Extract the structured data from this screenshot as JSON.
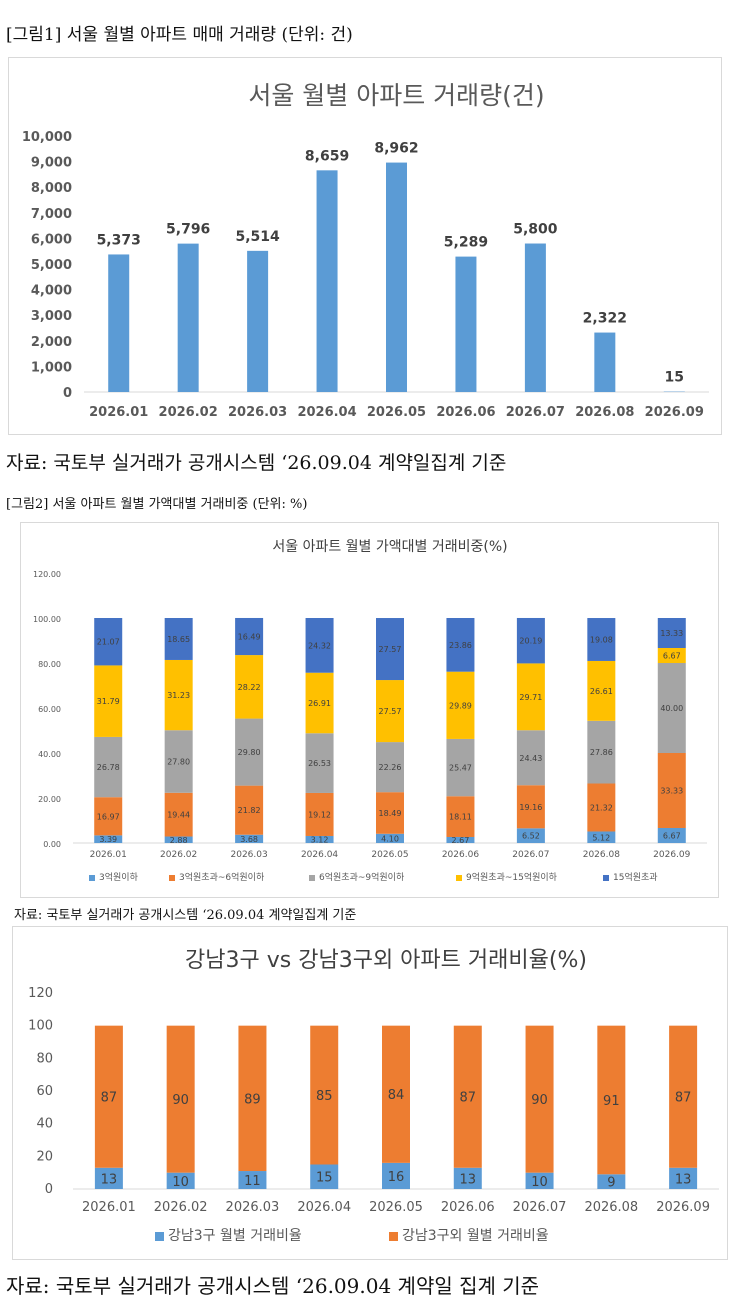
{
  "figure1": {
    "caption": "[그림1] 서울 월별 아파트 매매 거래량 (단위: 건)",
    "source": "자료: 국토부 실거래가 공개시스템 ‘26.09.04 계약일집계 기준"
  },
  "figure2": {
    "caption": "[그림2] 서울 아파트 월별 가액대별 거래비중 (단위: %)",
    "source": "자료: 국토부 실거래가 공개시스템 ‘26.09.04 계약일집계 기준"
  },
  "figure3": {
    "source": "자료: 국토부 실거래가 공개시스템 ‘26.09.04 계약일 집계 기준"
  },
  "colors": {
    "bar_blue": "#5b9bd5",
    "orange": "#ed7d31",
    "gray": "#a5a5a5",
    "yellow": "#ffc000",
    "dark_blue": "#4472c4",
    "light_blue": "#5b9bd5"
  },
  "chart_data": [
    {
      "type": "bar",
      "title": "서울 월별 아파트 거래량(건)",
      "categories": [
        "2026.01",
        "2026.02",
        "2026.03",
        "2026.04",
        "2026.05",
        "2026.06",
        "2026.07",
        "2026.08",
        "2026.09"
      ],
      "values": [
        5373,
        5796,
        5514,
        8659,
        8962,
        5289,
        5800,
        2322,
        15
      ],
      "value_labels": [
        "5,373",
        "5,796",
        "5,514",
        "8,659",
        "8,962",
        "5,289",
        "5,800",
        "2,322",
        "15"
      ],
      "ylim": [
        0,
        10000
      ],
      "yticks": [
        0,
        1000,
        2000,
        3000,
        4000,
        5000,
        6000,
        7000,
        8000,
        9000,
        10000
      ],
      "ytick_labels": [
        "0",
        "1,000",
        "2,000",
        "3,000",
        "4,000",
        "5,000",
        "6,000",
        "7,000",
        "8,000",
        "9,000",
        "10,000"
      ],
      "grid": false,
      "legend": "none"
    },
    {
      "type": "bar",
      "stacked": true,
      "title": "서울 아파트 월별 가액대별 거래비중(%)",
      "categories": [
        "2026.01",
        "2026.02",
        "2026.03",
        "2026.04",
        "2026.05",
        "2026.06",
        "2026.07",
        "2026.08",
        "2026.09"
      ],
      "ylim": [
        0,
        120
      ],
      "yticks": [
        0,
        20,
        40,
        60,
        80,
        100,
        120
      ],
      "ytick_labels": [
        "0.00",
        "20.00",
        "40.00",
        "60.00",
        "80.00",
        "100.00",
        "120.00"
      ],
      "legend": "bottom",
      "series": [
        {
          "name": "3억원이하",
          "values": [
            3.39,
            2.88,
            3.68,
            3.12,
            4.1,
            2.67,
            6.52,
            5.12,
            6.67
          ],
          "labels": [
            "3.39",
            "2.88",
            "3.68",
            "3.12",
            "4.10",
            "2.67",
            "6.52",
            "5.12",
            "6.67"
          ]
        },
        {
          "name": "3억원초과~6억원이하",
          "values": [
            16.97,
            19.44,
            21.82,
            19.12,
            18.49,
            18.11,
            19.16,
            21.32,
            33.33
          ],
          "labels": [
            "16.97",
            "19.44",
            "21.82",
            "19.12",
            "18.49",
            "18.11",
            "19.16",
            "21.32",
            "33.33"
          ]
        },
        {
          "name": "6억원초과~9억원이하",
          "values": [
            26.78,
            27.8,
            29.8,
            26.53,
            22.26,
            25.47,
            24.43,
            27.86,
            40.0
          ],
          "labels": [
            "26.78",
            "27.80",
            "29.80",
            "26.53",
            "22.26",
            "25.47",
            "24.43",
            "27.86",
            "40.00"
          ]
        },
        {
          "name": "9억원초과~15억원이하",
          "values": [
            31.79,
            31.23,
            28.22,
            26.91,
            27.57,
            29.89,
            29.71,
            26.61,
            6.67
          ],
          "labels": [
            "31.79",
            "31.23",
            "28.22",
            "26.91",
            "27.57",
            "29.89",
            "29.71",
            "26.61",
            "6.67"
          ]
        },
        {
          "name": "15억원초과",
          "values": [
            21.07,
            18.65,
            16.49,
            24.32,
            27.57,
            23.86,
            20.19,
            19.08,
            13.33
          ],
          "labels": [
            "21.07",
            "18.65",
            "16.49",
            "24.32",
            "27.57",
            "23.86",
            "20.19",
            "19.08",
            "13.33"
          ]
        }
      ]
    },
    {
      "type": "bar",
      "stacked": true,
      "title": "강남3구 vs 강남3구외 아파트 거래비율(%)",
      "categories": [
        "2026.01",
        "2026.02",
        "2026.03",
        "2026.04",
        "2026.05",
        "2026.06",
        "2026.07",
        "2026.08",
        "2026.09"
      ],
      "ylim": [
        0,
        120
      ],
      "yticks": [
        0,
        20,
        40,
        60,
        80,
        100,
        120
      ],
      "ytick_labels": [
        "0",
        "20",
        "40",
        "60",
        "80",
        "100",
        "120"
      ],
      "legend": "bottom",
      "series": [
        {
          "name": "강남3구 월별 거래비율",
          "values": [
            13,
            10,
            11,
            15,
            16,
            13,
            10,
            9,
            13
          ],
          "labels": [
            "13",
            "10",
            "11",
            "15",
            "16",
            "13",
            "10",
            "9",
            "13"
          ]
        },
        {
          "name": "강남3구외 월별 거래비율",
          "values": [
            87,
            90,
            89,
            85,
            84,
            87,
            90,
            91,
            87
          ],
          "labels": [
            "87",
            "90",
            "89",
            "85",
            "84",
            "87",
            "90",
            "91",
            "87"
          ]
        }
      ]
    }
  ]
}
